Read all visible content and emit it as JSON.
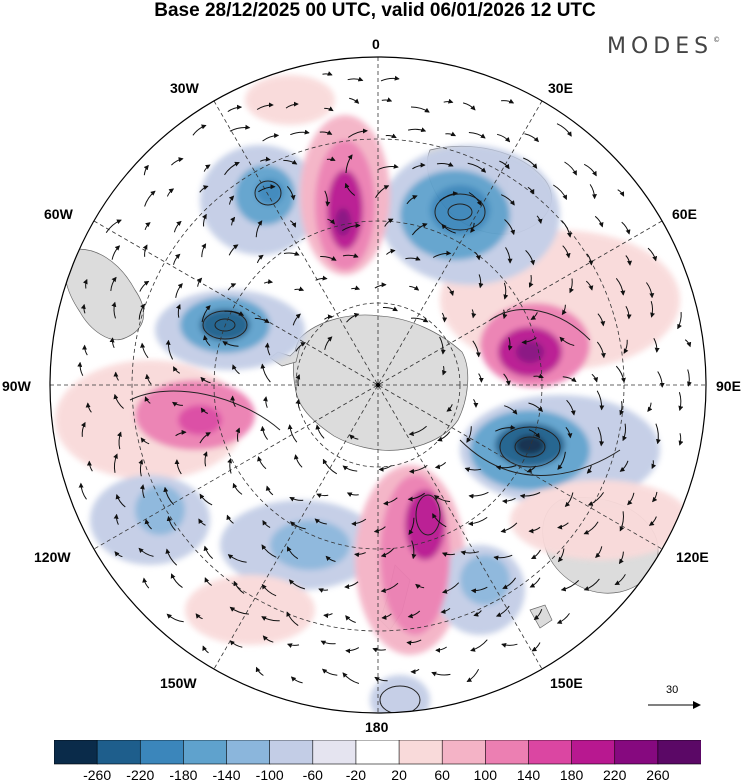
{
  "title": "Base 28/12/2025 00 UTC, valid 06/01/2026 12 UTC",
  "logo": "MODES",
  "logo_mark": "©",
  "longitude_labels": {
    "lon_0": "0",
    "lon_30e": "30E",
    "lon_60e": "60E",
    "lon_90e": "90E",
    "lon_120e": "120E",
    "lon_150e": "150E",
    "lon_180": "180",
    "lon_150w": "150W",
    "lon_120w": "120W",
    "lon_90w": "90W",
    "lon_60w": "60W",
    "lon_30w": "30W"
  },
  "vector_scale": {
    "label": "30"
  },
  "colorbar": {
    "ticks": [
      "-260",
      "-220",
      "-180",
      "-140",
      "-100",
      "-60",
      "-20",
      "20",
      "60",
      "100",
      "140",
      "180",
      "220",
      "260"
    ],
    "colors": [
      "#0a2b4a",
      "#1e5e8c",
      "#3b86bb",
      "#5fa2cd",
      "#8bb6dc",
      "#c3cde6",
      "#e5e4f0",
      "#ffffff",
      "#f9dada",
      "#f4b3c6",
      "#ec7fb2",
      "#db46a2",
      "#b81890",
      "#86097f",
      "#5b0866"
    ]
  },
  "map_colors": {
    "land": "#dadada",
    "coast": "#555555",
    "grid": "#333333",
    "vector": "#111111"
  }
}
